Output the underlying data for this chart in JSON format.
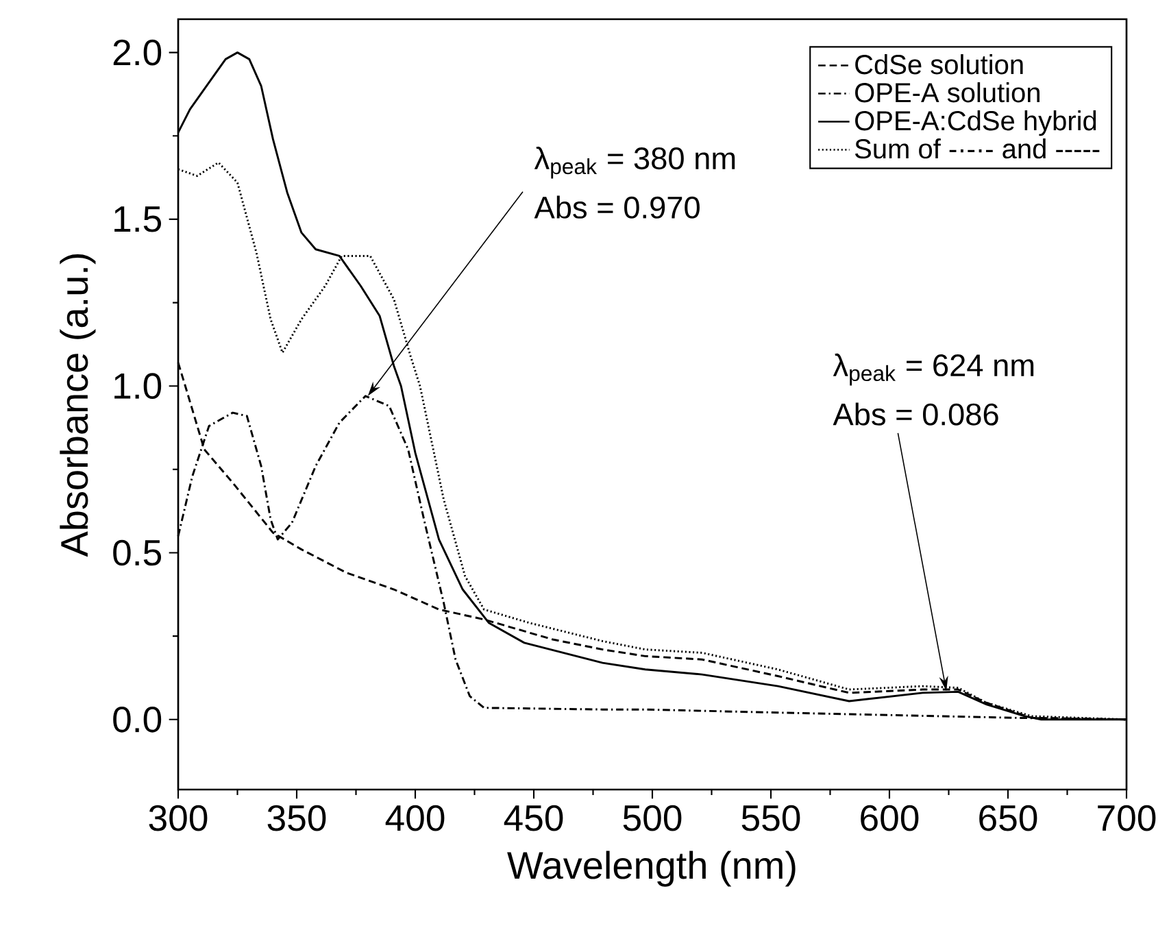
{
  "chart_data": {
    "type": "line",
    "xlabel": "Wavelength (nm)",
    "ylabel": "Absorbance (a.u.)",
    "xlim": [
      300,
      700
    ],
    "ylim": [
      -0.21,
      2.1
    ],
    "xticks": [
      300,
      350,
      400,
      450,
      500,
      550,
      600,
      650,
      700
    ],
    "yticks": [
      {
        "value": 0,
        "label": "0.0"
      },
      {
        "value": 0.5,
        "label": "0.5"
      },
      {
        "value": 1,
        "label": "1.0"
      },
      {
        "value": 1.5,
        "label": "1.5"
      },
      {
        "value": 2,
        "label": "2.0"
      }
    ],
    "legend": "top right",
    "grid": false,
    "marker": "none",
    "series": [
      {
        "name": "CdSe solution",
        "color": "#000000",
        "line_style": "dashed",
        "x": [
          300,
          303,
          311,
          323,
          340,
          352,
          371,
          391,
          410,
          429,
          458,
          479,
          497,
          521,
          553,
          583,
          614,
          629,
          641,
          660,
          700
        ],
        "values": [
          1.07,
          1.0,
          0.81,
          0.71,
          0.56,
          0.51,
          0.44,
          0.39,
          0.33,
          0.3,
          0.24,
          0.21,
          0.19,
          0.18,
          0.13,
          0.08,
          0.09,
          0.09,
          0.05,
          0.005,
          0
        ]
      },
      {
        "name": "OPE-A solution",
        "color": "#000000",
        "line_style": "dashdotted",
        "x": [
          300,
          306,
          313,
          323,
          329,
          335,
          339,
          342,
          348,
          358,
          368,
          379,
          389,
          397,
          404,
          412,
          417,
          423,
          429,
          479,
          497,
          557,
          653,
          700
        ],
        "values": [
          0.55,
          0.73,
          0.88,
          0.92,
          0.91,
          0.76,
          0.6,
          0.54,
          0.59,
          0.76,
          0.89,
          0.97,
          0.94,
          0.81,
          0.59,
          0.35,
          0.18,
          0.07,
          0.035,
          0.03,
          0.03,
          0.02,
          0.005,
          0
        ]
      },
      {
        "name": "OPE-A:CdSe hybrid",
        "color": "#000000",
        "line_style": "solid",
        "x": [
          300,
          305,
          310,
          315,
          320,
          325,
          330,
          335,
          340,
          346,
          352,
          358,
          368,
          377,
          385,
          391,
          394,
          400,
          410,
          420,
          431,
          446,
          468,
          479,
          497,
          521,
          553,
          583,
          614,
          629,
          641,
          657,
          664,
          700
        ],
        "values": [
          1.76,
          1.83,
          1.88,
          1.93,
          1.98,
          2.0,
          1.98,
          1.9,
          1.74,
          1.58,
          1.46,
          1.41,
          1.39,
          1.3,
          1.21,
          1.06,
          1.0,
          0.8,
          0.54,
          0.39,
          0.29,
          0.23,
          0.19,
          0.17,
          0.15,
          0.135,
          0.1,
          0.055,
          0.08,
          0.083,
          0.045,
          0.01,
          0,
          0
        ]
      },
      {
        "name": "Sum of -·-·- and -----",
        "color": "#000000",
        "line_style": "dotted",
        "x": [
          300,
          308,
          317,
          325,
          333,
          339,
          344,
          352,
          362,
          369,
          381,
          391,
          398,
          402,
          412,
          421,
          429,
          448,
          479,
          497,
          521,
          553,
          583,
          614,
          629,
          641,
          660,
          700
        ],
        "values": [
          1.65,
          1.63,
          1.67,
          1.61,
          1.4,
          1.2,
          1.1,
          1.2,
          1.3,
          1.39,
          1.39,
          1.26,
          1.09,
          1.0,
          0.66,
          0.43,
          0.33,
          0.29,
          0.235,
          0.21,
          0.2,
          0.15,
          0.09,
          0.1,
          0.095,
          0.05,
          0.01,
          0
        ]
      }
    ],
    "annotations": [
      {
        "text": "λ$_{peak}$ = 380 nm",
        "x": 380,
        "y": 0.97
      },
      "Abs = 0.970",
      "λ$_{peak}$ = 624 nm",
      {
        "text": "Abs = 0.086",
        "x": 624,
        "y": 0.086
      }
    ]
  }
}
